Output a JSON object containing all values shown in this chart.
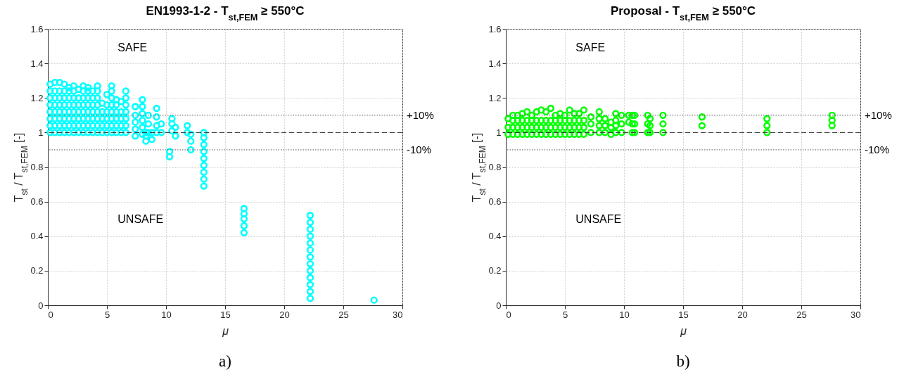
{
  "chart_data": [
    {
      "type": "scatter",
      "title": "EN1993-1-2 - T$_{st,FEM}$ ≥ 550°C",
      "xlabel": "μ",
      "ylabel": "T$_{st}$ / T$_{st,FEM}$ [-]",
      "xlim": [
        0,
        30
      ],
      "xticks": [
        0,
        5,
        10,
        15,
        20,
        25,
        30
      ],
      "ylim": [
        0,
        1.6
      ],
      "yticks": [
        0,
        0.2,
        0.4,
        0.6,
        0.8,
        1,
        1.2,
        1.4,
        1.6
      ],
      "grid": true,
      "marker": "circle",
      "ref_lines": [
        {
          "axis": "y",
          "value": 1.1,
          "line_style": "dotted",
          "color": "#555555"
        },
        {
          "axis": "y",
          "value": 1,
          "line_style": "dashed",
          "color": "#333333"
        },
        {
          "axis": "y",
          "value": 0.9,
          "line_style": "dotted",
          "color": "#555555"
        }
      ],
      "annotations": [
        "SAFE",
        "UNSAFE",
        "+10%",
        "-10%",
        "a)"
      ],
      "series": [
        {
          "color": "#00ffff",
          "x": [
            0.2,
            0.2,
            0.2,
            0.2,
            0.2,
            0.2,
            0.2,
            0.2,
            0.6,
            0.6,
            0.6,
            0.6,
            0.6,
            0.6,
            0.6,
            0.6,
            1,
            1,
            1,
            1,
            1,
            1,
            1,
            1,
            1.4,
            1.4,
            1.4,
            1.4,
            1.4,
            1.4,
            1.4,
            1.4,
            1.8,
            1.8,
            1.8,
            1.8,
            1.8,
            1.8,
            1.8,
            1.8,
            2.2,
            2.2,
            2.2,
            2.2,
            2.2,
            2.2,
            2.2,
            2.2,
            2.6,
            2.6,
            2.6,
            2.6,
            2.6,
            2.6,
            2.6,
            3,
            3,
            3,
            3,
            3,
            3,
            3,
            3,
            3.4,
            3.4,
            3.4,
            3.4,
            3.4,
            3.4,
            3.4,
            3.4,
            3.8,
            3.8,
            3.8,
            3.8,
            3.8,
            3.8,
            3.8,
            4.2,
            4.2,
            4.2,
            4.2,
            4.2,
            4.2,
            4.2,
            4.2,
            4.6,
            4.6,
            4.6,
            4.6,
            4.6,
            5,
            5,
            5,
            5,
            5,
            5,
            5.4,
            5.4,
            5.4,
            5.4,
            5.4,
            5.4,
            5.4,
            5.4,
            5.8,
            5.8,
            5.8,
            5.8,
            5.8,
            5.8,
            6.2,
            6.2,
            6.2,
            6.2,
            6.2,
            6.6,
            6.6,
            6.6,
            6.6,
            6.6,
            6.6,
            6.6,
            7.4,
            7.4,
            7.4,
            7.4,
            7.4,
            8,
            8,
            8,
            8,
            8,
            8,
            8.3,
            8.3,
            8.3,
            8.5,
            8.5,
            8.5,
            8.8,
            8.8,
            9.2,
            9.2,
            9.2,
            9.2,
            9.6,
            9.6,
            10.3,
            10.3,
            10.5,
            10.5,
            10.5,
            10.8,
            10.8,
            11.8,
            11.8,
            12.1,
            12.1,
            12.1,
            13.2,
            13.2,
            13.2,
            13.2,
            13.2,
            13.2,
            13.2,
            13.2,
            13.2,
            16.6,
            16.6,
            16.6,
            16.6,
            16.6,
            22.2,
            22.2,
            22.2,
            22.2,
            22.2,
            22.2,
            22.2,
            22.2,
            22.2,
            22.2,
            22.2,
            22.2,
            22.2,
            27.6
          ],
          "values": [
            1,
            1.04,
            1.08,
            1.12,
            1.16,
            1.2,
            1.24,
            1.28,
            1,
            1.04,
            1.08,
            1.12,
            1.16,
            1.2,
            1.24,
            1.29,
            1,
            1.04,
            1.08,
            1.12,
            1.16,
            1.2,
            1.24,
            1.29,
            1,
            1.04,
            1.08,
            1.12,
            1.16,
            1.2,
            1.24,
            1.28,
            1,
            1.04,
            1.08,
            1.12,
            1.16,
            1.2,
            1.24,
            1.26,
            1,
            1.04,
            1.08,
            1.12,
            1.16,
            1.2,
            1.24,
            1.27,
            1,
            1.04,
            1.08,
            1.12,
            1.16,
            1.2,
            1.25,
            1,
            1.04,
            1.08,
            1.12,
            1.16,
            1.2,
            1.24,
            1.27,
            1,
            1.04,
            1.08,
            1.12,
            1.16,
            1.2,
            1.24,
            1.26,
            1,
            1.04,
            1.08,
            1.12,
            1.16,
            1.2,
            1.24,
            1,
            1.04,
            1.08,
            1.12,
            1.16,
            1.2,
            1.24,
            1.27,
            1,
            1.04,
            1.08,
            1.12,
            1.17,
            1,
            1.04,
            1.08,
            1.12,
            1.16,
            1.22,
            1,
            1.04,
            1.08,
            1.12,
            1.16,
            1.2,
            1.24,
            1.27,
            1,
            1.04,
            1.08,
            1.12,
            1.16,
            1.19,
            1,
            1.04,
            1.08,
            1.12,
            1.18,
            1,
            1.04,
            1.08,
            1.12,
            1.16,
            1.2,
            1.24,
            0.98,
            1.02,
            1.06,
            1.1,
            1.15,
            0.99,
            1.03,
            1.07,
            1.11,
            1.15,
            1.19,
            0.95,
            0.98,
            1,
            1,
            1.05,
            1.1,
            0.96,
            1,
            1,
            1.04,
            1.09,
            1.14,
            1,
            1.05,
            0.86,
            0.89,
            1.01,
            1.05,
            1.08,
            0.98,
            1.03,
            1,
            1.04,
            0.9,
            0.95,
            0.99,
            0.69,
            0.73,
            0.77,
            0.81,
            0.85,
            0.89,
            0.93,
            0.97,
            1,
            0.42,
            0.46,
            0.5,
            0.53,
            0.56,
            0.04,
            0.08,
            0.12,
            0.16,
            0.2,
            0.24,
            0.28,
            0.32,
            0.36,
            0.4,
            0.44,
            0.48,
            0.52,
            0.03
          ]
        }
      ]
    },
    {
      "type": "scatter",
      "title": "Proposal - T$_{st,FEM}$ ≥ 550°C",
      "xlabel": "μ",
      "ylabel": "T$_{st}$ / T$_{st,FEM}$ [-]",
      "xlim": [
        0,
        30
      ],
      "xticks": [
        0,
        5,
        10,
        15,
        20,
        25,
        30
      ],
      "ylim": [
        0,
        1.6
      ],
      "yticks": [
        0,
        0.2,
        0.4,
        0.6,
        0.8,
        1,
        1.2,
        1.4,
        1.6
      ],
      "grid": true,
      "marker": "circle",
      "ref_lines": [
        {
          "axis": "y",
          "value": 1.1,
          "line_style": "dotted",
          "color": "#555555"
        },
        {
          "axis": "y",
          "value": 1,
          "line_style": "dashed",
          "color": "#333333"
        },
        {
          "axis": "y",
          "value": 0.9,
          "line_style": "dotted",
          "color": "#555555"
        }
      ],
      "annotations": [
        "SAFE",
        "UNSAFE",
        "+10%",
        "-10%",
        "b)"
      ],
      "series": [
        {
          "color": "#00ff00",
          "x": [
            0.2,
            0.2,
            0.2,
            0.6,
            0.6,
            0.6,
            0.6,
            1,
            1,
            1,
            1,
            1.4,
            1.4,
            1.4,
            1.4,
            1.8,
            1.8,
            1.8,
            1.8,
            2.2,
            2.2,
            2.2,
            2.2,
            2.6,
            2.6,
            2.6,
            2.6,
            3,
            3,
            3,
            3,
            3.4,
            3.4,
            3.4,
            3.4,
            3.8,
            3.8,
            3.8,
            3.8,
            4.2,
            4.2,
            4.2,
            4.2,
            4.6,
            4.6,
            4.6,
            4.6,
            5,
            5,
            5,
            5,
            5.4,
            5.4,
            5.4,
            5.4,
            5.8,
            5.8,
            5.8,
            5.8,
            6.2,
            6.2,
            6.2,
            6.2,
            6.6,
            6.6,
            6.6,
            6.6,
            7.2,
            7.2,
            7.2,
            7.9,
            7.9,
            7.9,
            7.9,
            8.4,
            8.4,
            8.4,
            8.9,
            8.9,
            8.9,
            9.3,
            9.3,
            9.3,
            9.3,
            9.8,
            9.8,
            9.8,
            10.4,
            10.4,
            10.7,
            10.7,
            10.7,
            10.9,
            10.9,
            10.9,
            12,
            12,
            12,
            12.2,
            12.2,
            12.2,
            13.3,
            13.3,
            13.3,
            16.6,
            16.6,
            22.1,
            22.1,
            22.1,
            27.6,
            27.6,
            27.6
          ],
          "values": [
            0.99,
            1.03,
            1.08,
            0.99,
            1.03,
            1.07,
            1.1,
            0.99,
            1.03,
            1.07,
            1.1,
            0.99,
            1.03,
            1.07,
            1.11,
            0.99,
            1.03,
            1.07,
            1.12,
            0.99,
            1.03,
            1.07,
            1.1,
            0.99,
            1.03,
            1.07,
            1.12,
            0.99,
            1.03,
            1.07,
            1.13,
            0.99,
            1.03,
            1.07,
            1.12,
            0.99,
            1.03,
            1.07,
            1.14,
            0.99,
            1.03,
            1.07,
            1.1,
            0.99,
            1.03,
            1.07,
            1.11,
            0.99,
            1.03,
            1.07,
            1.1,
            0.99,
            1.03,
            1.07,
            1.13,
            0.99,
            1.03,
            1.07,
            1.11,
            0.99,
            1.03,
            1.07,
            1.11,
            0.99,
            1.03,
            1.07,
            1.13,
            1,
            1.05,
            1.09,
            1,
            1.04,
            1.08,
            1.12,
            1,
            1.04,
            1.08,
            0.99,
            1.03,
            1.06,
            1,
            1.04,
            1.07,
            1.11,
            1,
            1.05,
            1.1,
            1.06,
            1.1,
            1,
            1.05,
            1.1,
            1,
            1.05,
            1.1,
            1,
            1.05,
            1.1,
            1,
            1.04,
            1.08,
            1,
            1.05,
            1.1,
            1.04,
            1.09,
            1,
            1.04,
            1.08,
            1.04,
            1.07,
            1.1
          ]
        }
      ]
    }
  ]
}
